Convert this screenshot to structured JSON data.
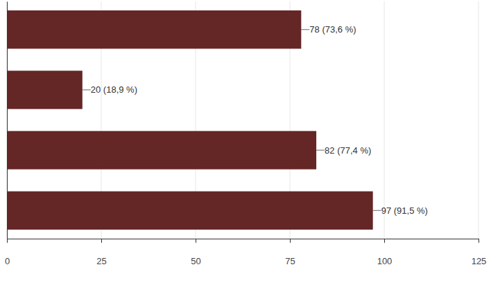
{
  "chart_data": {
    "type": "bar",
    "orientation": "horizontal",
    "categories": [
      null,
      null,
      null,
      null
    ],
    "values": [
      78,
      20,
      82,
      97
    ],
    "value_labels": [
      "78 (73,6 %)",
      "20 (18,9 %)",
      "82 (77,4 %)",
      "97 (91,5 %)"
    ],
    "data_labels": true,
    "color": "#652626",
    "xlim": [
      0,
      125
    ],
    "xticks": [
      0,
      25,
      50,
      75,
      100,
      125
    ],
    "grid": true,
    "tick_labels": "x"
  }
}
